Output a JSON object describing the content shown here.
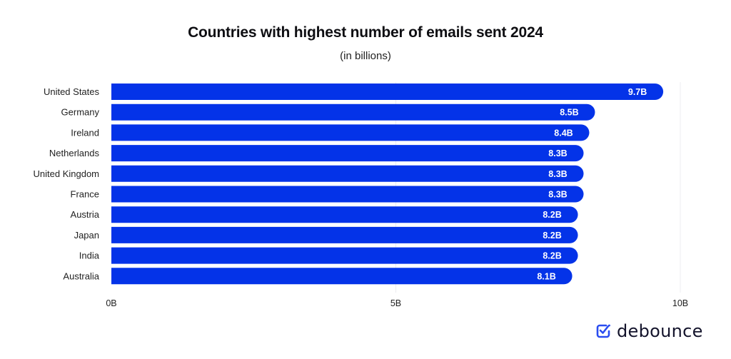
{
  "chart_data": {
    "type": "bar",
    "orientation": "horizontal",
    "title": "Countries with highest number of emails sent 2024",
    "subtitle": "(in billions)",
    "xlabel": "",
    "ylabel": "",
    "categories": [
      "United States",
      "Germany",
      "Ireland",
      "Netherlands",
      "United Kingdom",
      "France",
      "Austria",
      "Japan",
      "India",
      "Australia"
    ],
    "values": [
      9.7,
      8.5,
      8.4,
      8.3,
      8.3,
      8.3,
      8.2,
      8.2,
      8.2,
      8.1
    ],
    "value_labels": [
      "9.7B",
      "8.5B",
      "8.4B",
      "8.3B",
      "8.3B",
      "8.3B",
      "8.2B",
      "8.2B",
      "8.2B",
      "8.1B"
    ],
    "xlim": [
      0,
      10
    ],
    "x_ticks": [
      0,
      5,
      10
    ],
    "x_tick_labels": [
      "0B",
      "5B",
      "10B"
    ],
    "grid": true,
    "legend": "none",
    "bar_color": "#0433e8"
  },
  "brand": {
    "name": "debounce",
    "icon": "check-badge-icon",
    "icon_color": "#2a4df0"
  }
}
